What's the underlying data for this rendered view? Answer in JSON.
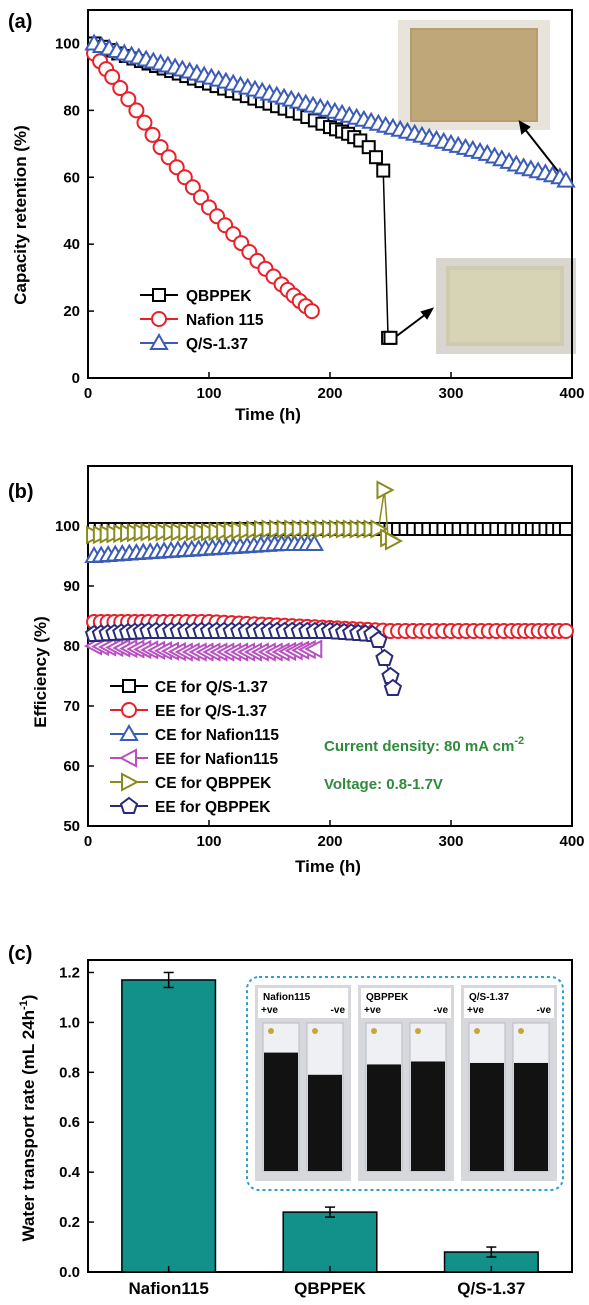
{
  "chart_data": [
    {
      "panel": "(a)",
      "type": "line",
      "xlabel": "Time (h)",
      "ylabel": "Capacity retention (%)",
      "xlim": [
        0,
        400
      ],
      "ylim": [
        0,
        110
      ],
      "xticks": [
        "0",
        "100",
        "200",
        "300",
        "400"
      ],
      "yticks": [
        "0",
        "20",
        "40",
        "60",
        "80",
        "100"
      ],
      "legend_position": "bottom-left",
      "series": [
        {
          "name": "QBPPEK",
          "color": "#000000",
          "marker": "square",
          "x": [
            5,
            25,
            50,
            75,
            100,
            125,
            150,
            175,
            200,
            215,
            225,
            232,
            238,
            244,
            248,
            250
          ],
          "y": [
            100,
            97,
            94,
            91,
            88,
            85,
            82,
            79,
            75,
            73,
            71,
            69,
            66,
            62,
            12,
            12
          ]
        },
        {
          "name": "Nafion 115",
          "color": "#e8202a",
          "marker": "circle",
          "x": [
            5,
            20,
            40,
            60,
            80,
            100,
            120,
            140,
            160,
            175,
            185
          ],
          "y": [
            97,
            90,
            80,
            69,
            60,
            51,
            43,
            35,
            28,
            23,
            20
          ]
        },
        {
          "name": "Q/S-1.37",
          "color": "#3a5bb8",
          "marker": "triangle-up",
          "x": [
            5,
            30,
            60,
            90,
            120,
            150,
            180,
            210,
            240,
            270,
            300,
            330,
            360,
            390,
            395
          ],
          "y": [
            100,
            97,
            94,
            91,
            88,
            85,
            82,
            79,
            76,
            73,
            70,
            67,
            63,
            60,
            59
          ]
        }
      ]
    },
    {
      "panel": "(b)",
      "type": "line",
      "xlabel": "Time (h)",
      "ylabel": "Efficiency (%)",
      "xlim": [
        0,
        400
      ],
      "ylim": [
        50,
        110
      ],
      "xticks": [
        "0",
        "100",
        "200",
        "300",
        "400"
      ],
      "yticks": [
        "50",
        "60",
        "70",
        "80",
        "90",
        "100"
      ],
      "legend_position": "bottom-left",
      "annotations": [
        "Current density: 80 mA cm",
        "-2",
        "Voltage: 0.8-1.7V"
      ],
      "series": [
        {
          "name": "CE for Q/S-1.37",
          "color": "#000000",
          "marker": "square",
          "x": [
            5,
            50,
            100,
            150,
            200,
            250,
            300,
            350,
            395
          ],
          "y": [
            99.5,
            99.5,
            99.5,
            99.5,
            99.5,
            99.5,
            99.5,
            99.5,
            99.5
          ]
        },
        {
          "name": "EE for Q/S-1.37",
          "color": "#e8202a",
          "marker": "circle",
          "x": [
            5,
            50,
            100,
            150,
            200,
            250,
            300,
            350,
            395
          ],
          "y": [
            84,
            84,
            84,
            83.5,
            83,
            82.5,
            82.5,
            82.5,
            82.5
          ]
        },
        {
          "name": "CE for Nafion115",
          "color": "#3a5bb8",
          "marker": "triangle-up",
          "x": [
            5,
            40,
            80,
            120,
            160,
            187
          ],
          "y": [
            95,
            95.5,
            96,
            96.5,
            97,
            97
          ]
        },
        {
          "name": "EE for Nafion115",
          "color": "#b84fc0",
          "marker": "triangle-left",
          "x": [
            5,
            40,
            80,
            120,
            160,
            187
          ],
          "y": [
            80,
            79.5,
            79,
            79,
            79,
            79.5
          ]
        },
        {
          "name": "CE for QBPPEK",
          "color": "#8a8a1e",
          "marker": "triangle-right",
          "x": [
            5,
            50,
            100,
            150,
            200,
            240,
            245,
            248,
            252
          ],
          "y": [
            98.5,
            99,
            99,
            99.5,
            99.5,
            99.5,
            106,
            98,
            97.5
          ]
        },
        {
          "name": "EE for QBPPEK",
          "color": "#2a2a7a",
          "marker": "pentagon",
          "x": [
            5,
            50,
            100,
            150,
            200,
            235,
            240,
            245,
            250,
            252
          ],
          "y": [
            82,
            82.5,
            82.5,
            82.5,
            82.5,
            82,
            81,
            78,
            75,
            73
          ]
        }
      ]
    },
    {
      "panel": "(c)",
      "type": "bar",
      "ylabel": "Water transport rate (mL 24h",
      "ylabel_sup": "-1",
      "ylabel_end": ")",
      "ylim": [
        0,
        1.25
      ],
      "yticks": [
        "0.0",
        "0.2",
        "0.4",
        "0.6",
        "0.8",
        "1.0",
        "1.2"
      ],
      "categories": [
        "Nafion115",
        "QBPPEK",
        "Q/S-1.37"
      ],
      "values": [
        1.17,
        0.24,
        0.08
      ],
      "errors": [
        0.03,
        0.02,
        0.02
      ],
      "bar_color": "#11918a",
      "inset": {
        "photos": [
          {
            "title": "Nafion115",
            "plus": "+ve",
            "minus": "-ve",
            "levels": [
              0.8,
              0.65
            ]
          },
          {
            "title": "QBPPEK",
            "plus": "+ve",
            "minus": "-ve",
            "levels": [
              0.72,
              0.74
            ]
          },
          {
            "title": "Q/S-1.37",
            "plus": "+ve",
            "minus": "-ve",
            "levels": [
              0.73,
              0.73
            ]
          }
        ]
      }
    }
  ]
}
